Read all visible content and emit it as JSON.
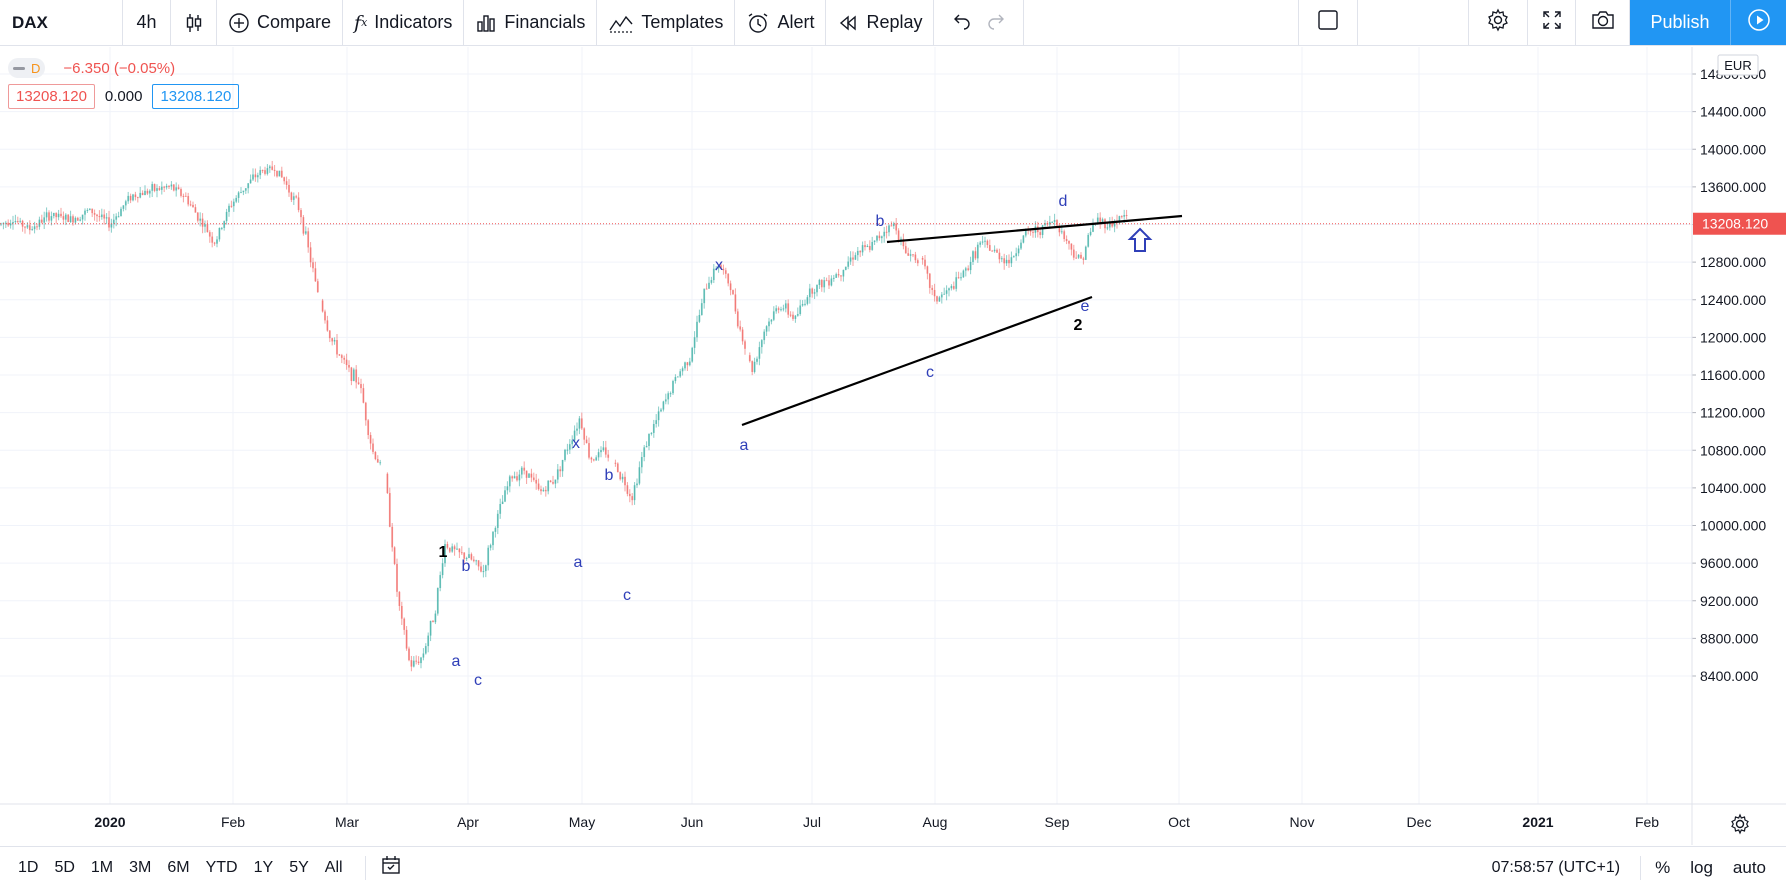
{
  "toolbar": {
    "symbol": "DAX",
    "interval": "4h",
    "compare": "Compare",
    "indicators": "Indicators",
    "financials": "Financials",
    "templates": "Templates",
    "alert": "Alert",
    "replay": "Replay",
    "publish": "Publish",
    "icons": [
      "candles-icon",
      "plus-circle-icon",
      "fx-icon",
      "financials-icon",
      "templates-icon",
      "alarm-icon",
      "replay-icon",
      "undo-icon",
      "redo-icon",
      "layout-icon",
      "gear-icon",
      "fullscreen-icon",
      "camera-icon",
      "play-icon"
    ]
  },
  "legend": {
    "badge": "D",
    "change": "−6.350 (−0.05%)",
    "bid": "13208.120",
    "spread": "0.000",
    "ask": "13208.120"
  },
  "price_axis": {
    "currency": "EUR",
    "labels": [
      "14800.000",
      "14400.000",
      "14000.000",
      "13600.000",
      "13200.000",
      "12800.000",
      "12400.000",
      "12000.000",
      "11600.000",
      "11200.000",
      "10800.000",
      "10400.000",
      "10000.000",
      "9600.000",
      "9200.000",
      "8800.000",
      "8400.000"
    ],
    "last_price": "13208.120"
  },
  "time_axis": {
    "labels": [
      "2020",
      "Feb",
      "Mar",
      "Apr",
      "May",
      "Jun",
      "Jul",
      "Aug",
      "Sep",
      "Oct",
      "Nov",
      "Dec",
      "2021",
      "Feb"
    ]
  },
  "annotations": {
    "wave_labels": [
      "1",
      "b",
      "a",
      "c",
      "x",
      "a",
      "b",
      "c",
      "x",
      "a",
      "b",
      "c",
      "d",
      "e",
      "2"
    ]
  },
  "chart_data": {
    "type": "candlestick",
    "symbol": "DAX",
    "interval": "4h",
    "currency": "EUR",
    "ylim": [
      8200,
      15000
    ],
    "last": 13208.12,
    "x": [
      "Jan",
      "Feb",
      "Mar",
      "Apr",
      "May",
      "Jun",
      "Jul",
      "Aug",
      "Sep"
    ],
    "close_path": [
      [
        0,
        13200
      ],
      [
        12,
        13260
      ],
      [
        30,
        13150
      ],
      [
        50,
        13300
      ],
      [
        70,
        13250
      ],
      [
        90,
        13350
      ],
      [
        110,
        13200
      ],
      [
        130,
        13500
      ],
      [
        150,
        13560
      ],
      [
        170,
        13600
      ],
      [
        185,
        13500
      ],
      [
        200,
        13250
      ],
      [
        215,
        13000
      ],
      [
        230,
        13400
      ],
      [
        245,
        13600
      ],
      [
        260,
        13760
      ],
      [
        275,
        13800
      ],
      [
        285,
        13650
      ],
      [
        300,
        13350
      ],
      [
        315,
        12600
      ],
      [
        330,
        12000
      ],
      [
        345,
        11700
      ],
      [
        360,
        11500
      ],
      [
        372,
        10800
      ],
      [
        385,
        10550
      ],
      [
        398,
        9200
      ],
      [
        410,
        8500
      ],
      [
        422,
        8600
      ],
      [
        435,
        9100
      ],
      [
        445,
        9800
      ],
      [
        458,
        9700
      ],
      [
        470,
        9650
      ],
      [
        483,
        9500
      ],
      [
        495,
        10000
      ],
      [
        510,
        10500
      ],
      [
        525,
        10600
      ],
      [
        540,
        10350
      ],
      [
        555,
        10500
      ],
      [
        570,
        10900
      ],
      [
        580,
        11150
      ],
      [
        590,
        10700
      ],
      [
        605,
        10800
      ],
      [
        620,
        10550
      ],
      [
        632,
        10300
      ],
      [
        645,
        10850
      ],
      [
        660,
        11200
      ],
      [
        675,
        11550
      ],
      [
        690,
        11800
      ],
      [
        705,
        12500
      ],
      [
        718,
        12800
      ],
      [
        730,
        12550
      ],
      [
        742,
        12000
      ],
      [
        752,
        11650
      ],
      [
        765,
        12100
      ],
      [
        780,
        12350
      ],
      [
        795,
        12200
      ],
      [
        810,
        12500
      ],
      [
        825,
        12600
      ],
      [
        840,
        12700
      ],
      [
        855,
        12900
      ],
      [
        870,
        12950
      ],
      [
        885,
        13150
      ],
      [
        895,
        13200
      ],
      [
        905,
        12900
      ],
      [
        920,
        12850
      ],
      [
        935,
        12400
      ],
      [
        950,
        12500
      ],
      [
        965,
        12700
      ],
      [
        980,
        13000
      ],
      [
        995,
        12900
      ],
      [
        1010,
        12800
      ],
      [
        1025,
        13100
      ],
      [
        1040,
        13150
      ],
      [
        1055,
        13250
      ],
      [
        1068,
        13000
      ],
      [
        1080,
        12800
      ],
      [
        1095,
        13250
      ],
      [
        1110,
        13200
      ],
      [
        1125,
        13300
      ],
      [
        1130,
        13208
      ]
    ],
    "trendlines": [
      {
        "from": [
          "Jun",
          11600
        ],
        "to": [
          "Sep",
          12800
        ]
      },
      {
        "from": [
          "Jul",
          13320
        ],
        "to": [
          "Oct",
          13560
        ]
      }
    ]
  }
}
